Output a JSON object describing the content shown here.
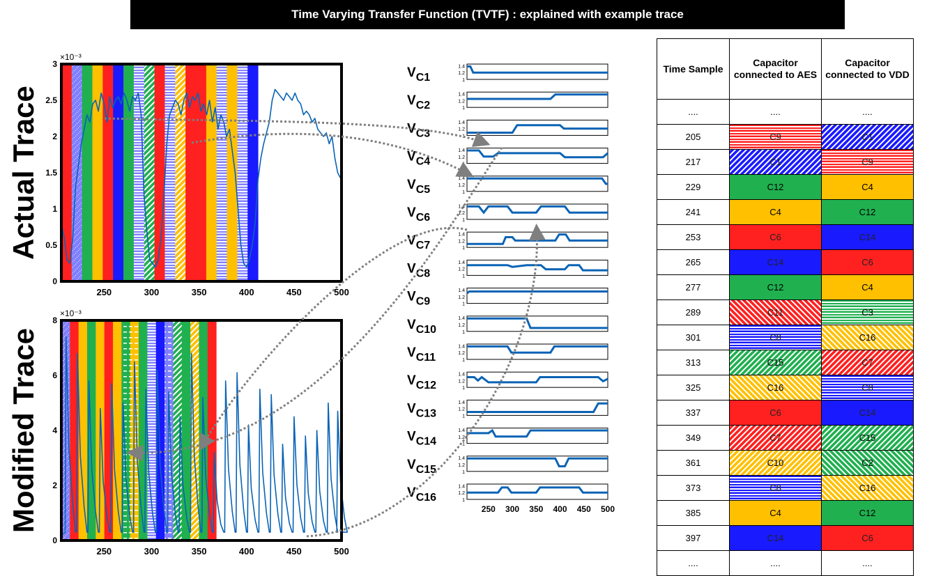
{
  "title": "Time Varying Transfer Function (TVTF) : explained with example trace",
  "colors": {
    "red": "#ff2020",
    "green": "#20b050",
    "yellow": "#ffc000",
    "blue": "#1a1aff",
    "lavender": "#8080ff",
    "trace": "#0a63b5",
    "arrow": "#7f7f7f",
    "stripe_white": "#ffffff"
  },
  "top_plot": {
    "ylabel": "Actual Trace",
    "exponent": "×10⁻³",
    "yticks": [
      "0",
      "0.5",
      "1",
      "1.5",
      "2",
      "2.5",
      "3"
    ],
    "xticks": [
      "250",
      "300",
      "350",
      "400",
      "450",
      "500"
    ]
  },
  "bottom_plot": {
    "ylabel": "Modified Trace",
    "exponent": "×10⁻³",
    "yticks": [
      "0",
      "2",
      "4",
      "6",
      "8"
    ],
    "xticks": [
      "250",
      "300",
      "350",
      "400",
      "450",
      "500"
    ]
  },
  "voltage_plots": {
    "labels": [
      {
        "base": "V",
        "sub": "C1"
      },
      {
        "base": "V",
        "sub": "C2"
      },
      {
        "base": "V",
        "sub": "C3"
      },
      {
        "base": "V",
        "sub": "C4"
      },
      {
        "base": "V",
        "sub": "C5"
      },
      {
        "base": "V",
        "sub": "C6"
      },
      {
        "base": "V",
        "sub": "C7"
      },
      {
        "base": "V",
        "sub": "C8"
      },
      {
        "base": "V",
        "sub": "C9"
      },
      {
        "base": "V",
        "sub": "C10"
      },
      {
        "base": "V",
        "sub": "C11"
      },
      {
        "base": "V",
        "sub": "C12"
      },
      {
        "base": "V",
        "sub": "C13"
      },
      {
        "base": "V",
        "sub": "C14"
      },
      {
        "base": "V",
        "sub": "C15"
      },
      {
        "base": "V",
        "sub": "C16"
      }
    ],
    "yticks": [
      "1.4",
      "1.2",
      "1"
    ],
    "xticks": [
      "250",
      "300",
      "350",
      "400",
      "450",
      "500"
    ]
  },
  "table": {
    "headers": [
      "Time Sample",
      "Capacitor connected to AES",
      "Capacitor connected to VDD"
    ],
    "rows": [
      {
        "t": "....",
        "aes": {
          "label": "....",
          "color": "none",
          "pattern": "solid"
        },
        "vdd": {
          "label": "....",
          "color": "none",
          "pattern": "solid"
        }
      },
      {
        "t": "205",
        "aes": {
          "label": "C9",
          "color": "red",
          "pattern": "horizontal"
        },
        "vdd": {
          "label": "C1",
          "color": "blue",
          "pattern": "diagonal"
        }
      },
      {
        "t": "217",
        "aes": {
          "label": "C1",
          "color": "blue",
          "pattern": "diagonal"
        },
        "vdd": {
          "label": "C9",
          "color": "red",
          "pattern": "horizontal"
        }
      },
      {
        "t": "229",
        "aes": {
          "label": "C12",
          "color": "green",
          "pattern": "solid"
        },
        "vdd": {
          "label": "C4",
          "color": "yellow",
          "pattern": "solid"
        }
      },
      {
        "t": "241",
        "aes": {
          "label": "C4",
          "color": "yellow",
          "pattern": "solid"
        },
        "vdd": {
          "label": "C12",
          "color": "green",
          "pattern": "solid"
        }
      },
      {
        "t": "253",
        "aes": {
          "label": "C6",
          "color": "red",
          "pattern": "solid"
        },
        "vdd": {
          "label": "C14",
          "color": "blue",
          "pattern": "solid"
        }
      },
      {
        "t": "265",
        "aes": {
          "label": "C14",
          "color": "blue",
          "pattern": "solid"
        },
        "vdd": {
          "label": "C6",
          "color": "red",
          "pattern": "solid"
        }
      },
      {
        "t": "277",
        "aes": {
          "label": "C12",
          "color": "green",
          "pattern": "solid"
        },
        "vdd": {
          "label": "C4",
          "color": "yellow",
          "pattern": "solid"
        }
      },
      {
        "t": "289",
        "aes": {
          "label": "C11",
          "color": "red",
          "pattern": "diagonal2"
        },
        "vdd": {
          "label": "C3",
          "color": "green",
          "pattern": "horizontal"
        }
      },
      {
        "t": "301",
        "aes": {
          "label": "C8",
          "color": "blue",
          "pattern": "horizontal"
        },
        "vdd": {
          "label": "C16",
          "color": "yellow",
          "pattern": "diagonal2"
        }
      },
      {
        "t": "313",
        "aes": {
          "label": "C15",
          "color": "green",
          "pattern": "diagonal"
        },
        "vdd": {
          "label": "C7",
          "color": "red",
          "pattern": "diagonal"
        }
      },
      {
        "t": "325",
        "aes": {
          "label": "C16",
          "color": "yellow",
          "pattern": "diagonal2"
        },
        "vdd": {
          "label": "C8",
          "color": "blue",
          "pattern": "horizontal"
        }
      },
      {
        "t": "337",
        "aes": {
          "label": "C6",
          "color": "red",
          "pattern": "solid"
        },
        "vdd": {
          "label": "C14",
          "color": "blue",
          "pattern": "solid"
        }
      },
      {
        "t": "349",
        "aes": {
          "label": "C7",
          "color": "red",
          "pattern": "diagonal"
        },
        "vdd": {
          "label": "C15",
          "color": "green",
          "pattern": "diagonal"
        }
      },
      {
        "t": "361",
        "aes": {
          "label": "C10",
          "color": "yellow",
          "pattern": "diagonal"
        },
        "vdd": {
          "label": "C2",
          "color": "green",
          "pattern": "diagonal2"
        }
      },
      {
        "t": "373",
        "aes": {
          "label": "C8",
          "color": "blue",
          "pattern": "horizontal"
        },
        "vdd": {
          "label": "C16",
          "color": "yellow",
          "pattern": "diagonal2"
        }
      },
      {
        "t": "385",
        "aes": {
          "label": "C4",
          "color": "yellow",
          "pattern": "solid"
        },
        "vdd": {
          "label": "C12",
          "color": "green",
          "pattern": "solid"
        }
      },
      {
        "t": "397",
        "aes": {
          "label": "C14",
          "color": "blue",
          "pattern": "solid"
        },
        "vdd": {
          "label": "C6",
          "color": "red",
          "pattern": "solid"
        }
      },
      {
        "t": "....",
        "aes": {
          "label": "....",
          "color": "none",
          "pattern": "solid"
        },
        "vdd": {
          "label": "....",
          "color": "none",
          "pattern": "solid"
        }
      }
    ]
  }
}
